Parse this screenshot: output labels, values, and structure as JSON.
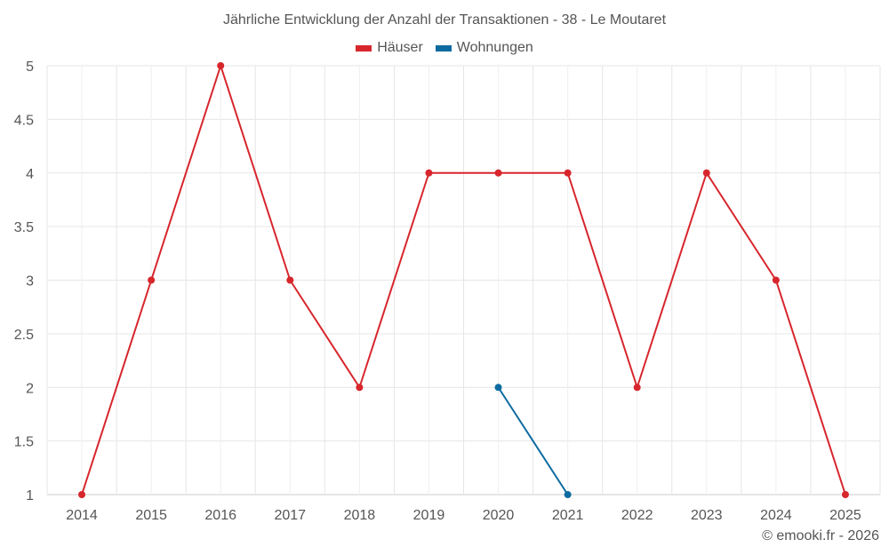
{
  "title": "Jährliche Entwicklung der Anzahl der Transaktionen - 38 - Le Moutaret",
  "legend": [
    {
      "label": "Häuser",
      "color": "#d7262c"
    },
    {
      "label": "Wohnungen",
      "color": "#0e6ba0"
    }
  ],
  "credits": "© emooki.fr - 2026",
  "chart_data": {
    "type": "line",
    "title": "Jährliche Entwicklung der Anzahl der Transaktionen - 38 - Le Moutaret",
    "xlabel": "",
    "ylabel": "",
    "categories": [
      "2014",
      "2015",
      "2016",
      "2017",
      "2018",
      "2019",
      "2020",
      "2021",
      "2022",
      "2023",
      "2024",
      "2025"
    ],
    "yticks": [
      "1",
      "1.5",
      "2",
      "2.5",
      "3",
      "3.5",
      "4",
      "4.5",
      "5"
    ],
    "ylim": [
      1,
      5
    ],
    "grid": true,
    "legend_position": "top",
    "series": [
      {
        "name": "Häuser",
        "color": "#d7262c",
        "values": [
          1,
          3,
          5,
          3,
          2,
          4,
          4,
          4,
          2,
          4,
          3,
          1
        ]
      },
      {
        "name": "Wohnungen",
        "color": "#0e6ba0",
        "values": [
          null,
          null,
          null,
          null,
          null,
          null,
          2,
          1,
          null,
          null,
          null,
          null
        ]
      }
    ]
  }
}
